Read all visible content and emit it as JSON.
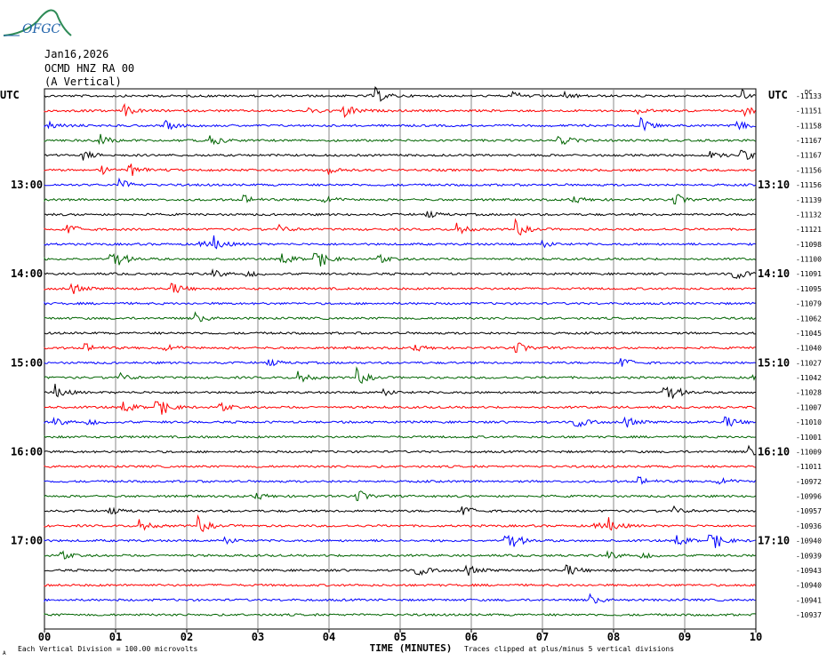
{
  "header": {
    "logo_text": "OFGC",
    "date": "Jan16,2026",
    "station": "OCMD HNZ RA 00",
    "component": "(A Vertical)"
  },
  "labels": {
    "utc_left": "UTC",
    "utc_right": "UTC",
    "dc": "DC",
    "xlabel": "TIME (MINUTES)",
    "footer_left": "Each Vertical Division =  100.00 microvolts",
    "footer_right": "Traces clipped at plus/minus 5 vertical divisions",
    "footer_mark": "A"
  },
  "colors": {
    "trace_cycle": [
      "#000000",
      "#ff0000",
      "#0000ff",
      "#006400"
    ],
    "grid": "#888888"
  },
  "chart_data": {
    "type": "line",
    "title": "OCMD HNZ RA 00",
    "xlabel": "TIME (MINUTES)",
    "xlim": [
      0,
      10
    ],
    "x_ticks": [
      "00",
      "01",
      "02",
      "03",
      "04",
      "05",
      "06",
      "07",
      "08",
      "09",
      "10"
    ],
    "left_time_labels": [
      {
        "row": 6,
        "label": "13:00"
      },
      {
        "row": 12,
        "label": "14:00"
      },
      {
        "row": 18,
        "label": "15:00"
      },
      {
        "row": 24,
        "label": "16:00"
      },
      {
        "row": 30,
        "label": "17:00"
      }
    ],
    "right_time_labels": [
      {
        "row": 6,
        "label": "13:10"
      },
      {
        "row": 12,
        "label": "14:10"
      },
      {
        "row": 18,
        "label": "15:10"
      },
      {
        "row": 24,
        "label": "16:10"
      },
      {
        "row": 30,
        "label": "17:10"
      }
    ],
    "dc_offsets": [
      "-11133",
      "-11151",
      "-11158",
      "-11167",
      "-11167",
      "-11156",
      "-11156",
      "-11139",
      "-11132",
      "-11121",
      "-11098",
      "-11100",
      "-11091",
      "-11095",
      "-11079",
      "-11062",
      "-11045",
      "-11040",
      "-11027",
      "-11042",
      "-11028",
      "-11007",
      "-11010",
      "-11001",
      "-11009",
      "-11011",
      "-10972",
      "-10996",
      "-10957",
      "-10936",
      "-10940",
      "-10939",
      "-10943",
      "-10940",
      "-10941",
      "-10937"
    ]
  }
}
